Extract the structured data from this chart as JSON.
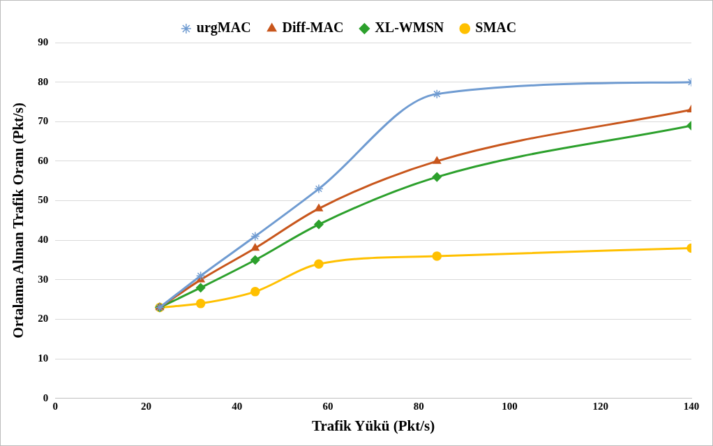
{
  "chart_data": {
    "type": "line",
    "xlabel": "Trafik Yükü (Pkt/s)",
    "ylabel": "Ortalama Alınan Trafik Oranı (Pkt/s)",
    "x": [
      23,
      32,
      44,
      58,
      84,
      140
    ],
    "series": [
      {
        "name": "urgMAC",
        "color": "#6f9bd1",
        "marker": "cross",
        "values": [
          23,
          31,
          41,
          53,
          77,
          80
        ]
      },
      {
        "name": "Diff-MAC",
        "color": "#c8561c",
        "marker": "triangle",
        "values": [
          23,
          30,
          38,
          48,
          60,
          73
        ]
      },
      {
        "name": "XL-WMSN",
        "color": "#2ca02c",
        "marker": "diamond",
        "values": [
          23,
          28,
          35,
          44,
          56,
          69
        ]
      },
      {
        "name": "SMAC",
        "color": "#ffc000",
        "marker": "circle",
        "values": [
          23,
          24,
          27,
          34,
          36,
          38
        ]
      }
    ],
    "xlim": [
      0,
      140
    ],
    "xticks": [
      0,
      20,
      40,
      60,
      80,
      100,
      120,
      140
    ],
    "ylim": [
      0,
      90
    ],
    "yticks": [
      0,
      10,
      20,
      30,
      40,
      50,
      60,
      70,
      80,
      90
    ],
    "grid": "y",
    "legend": "top"
  }
}
